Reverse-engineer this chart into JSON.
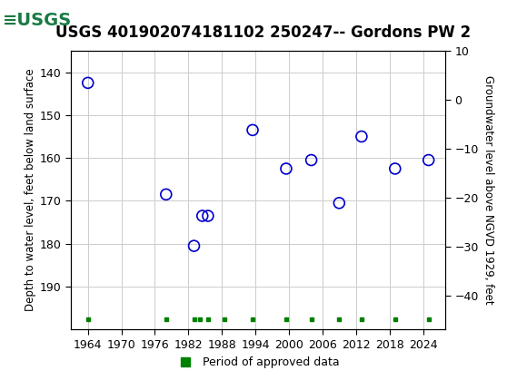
{
  "title": "USGS 401902074181102 250247-- Gordons PW 2",
  "ylabel_left": "Depth to water level, feet below land surface",
  "ylabel_right": "Groundwater level above NGVD 1929, feet",
  "header_bg_color": "#1a7a45",
  "header_text_color": "#ffffff",
  "plot_bg_color": "#ffffff",
  "grid_color": "#cccccc",
  "data_points": [
    {
      "year": 1964.0,
      "depth": 142.5
    },
    {
      "year": 1978.0,
      "depth": 168.5
    },
    {
      "year": 1983.0,
      "depth": 180.5
    },
    {
      "year": 1984.5,
      "depth": 173.5
    },
    {
      "year": 1985.5,
      "depth": 173.5
    },
    {
      "year": 1993.5,
      "depth": 153.5
    },
    {
      "year": 1999.5,
      "depth": 162.5
    },
    {
      "year": 2004.0,
      "depth": 160.5
    },
    {
      "year": 2009.0,
      "depth": 170.5
    },
    {
      "year": 2013.0,
      "depth": 155.0
    },
    {
      "year": 2019.0,
      "depth": 162.5
    },
    {
      "year": 2025.0,
      "depth": 160.5
    }
  ],
  "marker_color": "#0000cc",
  "marker_size": 7,
  "ylim_left_top": 135,
  "ylim_left_bottom": 200,
  "ylim_right_top": 10,
  "ylim_right_bottom": -47,
  "yticks_left": [
    140,
    150,
    160,
    170,
    180,
    190
  ],
  "yticks_right": [
    10,
    0,
    -10,
    -20,
    -30,
    -40
  ],
  "xlim": [
    1961,
    2028
  ],
  "xticks": [
    1964,
    1970,
    1976,
    1982,
    1988,
    1994,
    2000,
    2006,
    2012,
    2018,
    2024
  ],
  "legend_label": "Period of approved data",
  "legend_marker_color": "#008000",
  "approved_bars_x": [
    1964.0,
    1978.0,
    1983.0,
    1984.0,
    1985.5,
    1988.5,
    1993.5,
    1999.5,
    2004.0,
    2009.0,
    2013.0,
    2019.0,
    2025.0
  ],
  "title_fontsize": 12,
  "tick_fontsize": 9,
  "label_fontsize": 8.5
}
